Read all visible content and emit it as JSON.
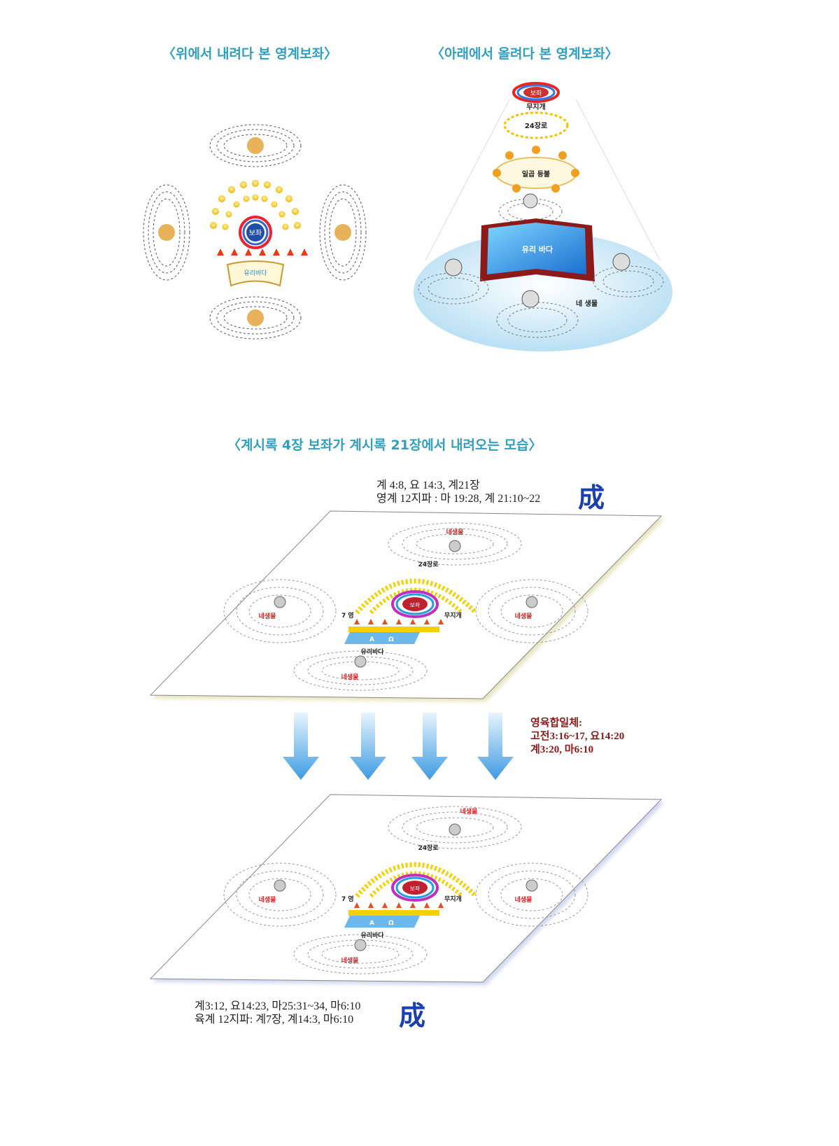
{
  "headings": {
    "top_left": "〈위에서 내려다 본 영계보좌〉",
    "top_right": "〈아래에서 올려다 본 영계보좌〉",
    "middle": "〈계시록 4장 보좌가 계시록 21장에서 내려오는 모습〉"
  },
  "top_view": {
    "throne": "보좌",
    "glass_sea": "유리바다"
  },
  "bottom_view": {
    "throne": "보좌",
    "rainbow": "무지개",
    "elders": "24장로",
    "seven_lamps": "일곱 등불",
    "glass_sea": "유리 바다",
    "four_beasts": "네 생물"
  },
  "plane": {
    "beast_label": "네생물",
    "elders": "24장로",
    "throne": "보좌",
    "seven": "7 영",
    "rainbow": "무지개",
    "glass_sea": "유리바다",
    "alpha": "A",
    "omega": "Ω"
  },
  "upper_refs": {
    "line1": "계 4:8, 요 14:3, 계21장",
    "line2": "영계 12지파 : 마 19:28, 계 21:10~22",
    "seong": "成"
  },
  "union_refs": {
    "line1": "영육합일체:",
    "line2": "고전3:16~17, 요14:20",
    "line3": "계3:20, 마6:10"
  },
  "lower_refs": {
    "line1": "계3:12, 요14:23, 마25:31~34, 마6:10",
    "line2": "육계 12지파: 계7장, 계14:3, 마6:10",
    "seong": "成"
  },
  "colors": {
    "heading": "#2f9fbf",
    "seong": "#1a3fb0",
    "union": "#8b1a1a",
    "arrow": "#4aa3e0"
  }
}
